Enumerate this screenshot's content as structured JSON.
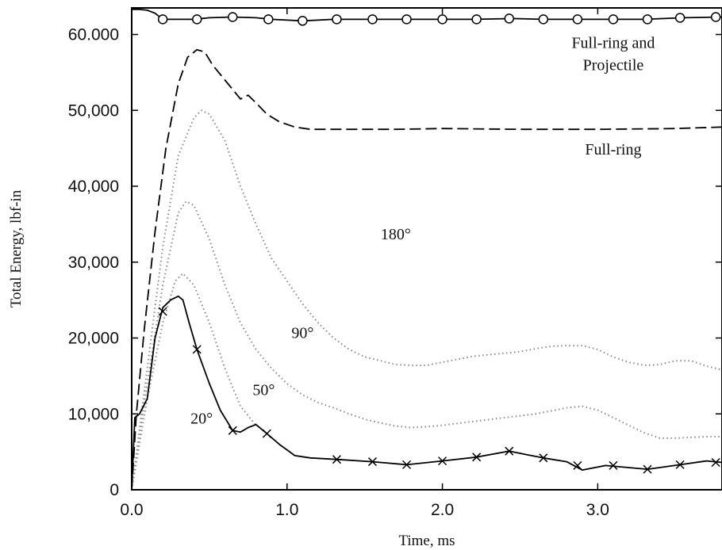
{
  "chart_data": {
    "type": "line",
    "xlabel": "Time, ms",
    "ylabel": "Total Energy, lbf-in",
    "xlim": [
      0,
      3.8
    ],
    "ylim": [
      0,
      63500
    ],
    "x_ticks": [
      {
        "value": 0.0,
        "label": "0.0"
      },
      {
        "value": 1.0,
        "label": "1.0"
      },
      {
        "value": 2.0,
        "label": "2.0"
      },
      {
        "value": 3.0,
        "label": "3.0"
      }
    ],
    "y_ticks": [
      {
        "value": 0,
        "label": "0"
      },
      {
        "value": 10000,
        "label": "10,000"
      },
      {
        "value": 20000,
        "label": "20,000"
      },
      {
        "value": 30000,
        "label": "30,000"
      },
      {
        "value": 40000,
        "label": "40,000"
      },
      {
        "value": 50000,
        "label": "50,000"
      },
      {
        "value": 60000,
        "label": "60.000"
      }
    ],
    "grid": false,
    "series": [
      {
        "name": "Full-ring and Projectile",
        "style": "solid",
        "marker": "circle",
        "color": "#000000",
        "x": [
          0.0,
          0.05,
          0.1,
          0.15,
          0.2,
          0.3,
          0.4,
          0.5,
          0.65,
          0.8,
          0.9,
          1.1,
          1.3,
          1.5,
          1.75,
          2.0,
          2.2,
          2.45,
          2.65,
          2.9,
          3.1,
          3.3,
          3.55,
          3.8
        ],
        "y": [
          63300,
          63300,
          63200,
          62800,
          62000,
          62000,
          62000,
          62200,
          62300,
          62200,
          62000,
          61800,
          62000,
          62000,
          62000,
          62000,
          62000,
          62100,
          62000,
          62000,
          62000,
          62000,
          62200,
          62300
        ],
        "marker_x": [
          0.2,
          0.42,
          0.65,
          0.88,
          1.1,
          1.32,
          1.55,
          1.77,
          2.0,
          2.22,
          2.43,
          2.65,
          2.87,
          3.1,
          3.32,
          3.53,
          3.76
        ],
        "marker_y": [
          62000,
          62000,
          62300,
          62000,
          61800,
          62000,
          62000,
          62000,
          62000,
          62000,
          62100,
          62000,
          62000,
          62000,
          62000,
          62200,
          62300
        ]
      },
      {
        "name": "Full-ring",
        "style": "dashed",
        "color": "#000000",
        "x": [
          0.0,
          0.03,
          0.08,
          0.15,
          0.22,
          0.3,
          0.36,
          0.42,
          0.47,
          0.52,
          0.6,
          0.7,
          0.75,
          0.8,
          0.87,
          0.95,
          1.05,
          1.15,
          1.4,
          1.7,
          2.0,
          2.5,
          3.0,
          3.5,
          3.8
        ],
        "y": [
          0,
          10000,
          21000,
          34000,
          45000,
          53500,
          57000,
          58000,
          57700,
          56000,
          54000,
          51500,
          52000,
          51000,
          49500,
          48500,
          47800,
          47500,
          47500,
          47500,
          47600,
          47500,
          47500,
          47600,
          47800
        ]
      },
      {
        "name": "180°",
        "style": "dotted",
        "color": "#8a8a8a",
        "x": [
          0.0,
          0.1,
          0.2,
          0.3,
          0.4,
          0.45,
          0.5,
          0.6,
          0.7,
          0.8,
          0.9,
          1.0,
          1.1,
          1.2,
          1.3,
          1.4,
          1.5,
          1.6,
          1.7,
          1.8,
          1.9,
          2.0,
          2.1,
          2.2,
          2.3,
          2.4,
          2.5,
          2.6,
          2.7,
          2.8,
          2.9,
          3.0,
          3.1,
          3.2,
          3.3,
          3.4,
          3.5,
          3.6,
          3.7,
          3.8
        ],
        "y": [
          0,
          16000,
          32000,
          44000,
          49000,
          50000,
          49500,
          46000,
          40000,
          35000,
          30500,
          27500,
          24500,
          22000,
          20000,
          18500,
          17500,
          17000,
          16500,
          16400,
          16400,
          16800,
          17200,
          17600,
          17800,
          18000,
          18200,
          18600,
          18900,
          19000,
          19000,
          18500,
          17500,
          16800,
          16400,
          16500,
          17000,
          17000,
          16300,
          15800
        ]
      },
      {
        "name": "90°",
        "style": "dotted",
        "color": "#8a8a8a",
        "x": [
          0.0,
          0.1,
          0.2,
          0.3,
          0.35,
          0.4,
          0.5,
          0.6,
          0.7,
          0.8,
          0.9,
          1.0,
          1.1,
          1.2,
          1.3,
          1.4,
          1.5,
          1.6,
          1.7,
          1.8,
          1.9,
          2.0,
          2.2,
          2.4,
          2.6,
          2.8,
          2.9,
          3.0,
          3.1,
          3.2,
          3.3,
          3.4,
          3.5,
          3.6,
          3.7,
          3.8
        ],
        "y": [
          0,
          14000,
          27000,
          36500,
          38000,
          37500,
          33000,
          27000,
          22000,
          18500,
          16000,
          14000,
          12500,
          11500,
          10800,
          10000,
          9300,
          8800,
          8400,
          8200,
          8300,
          8500,
          9000,
          9500,
          10000,
          10800,
          11000,
          10500,
          9500,
          8500,
          7500,
          6800,
          6800,
          6900,
          7000,
          7000
        ]
      },
      {
        "name": "50°",
        "style": "dotted",
        "color": "#8a8a8a",
        "x": [
          0.0,
          0.1,
          0.2,
          0.28,
          0.33,
          0.4,
          0.5,
          0.6,
          0.7,
          0.8
        ],
        "y": [
          0,
          12000,
          22000,
          27500,
          28500,
          27000,
          22000,
          16000,
          11000,
          8500
        ]
      },
      {
        "name": "20°",
        "style": "solid",
        "marker": "x",
        "color": "#000000",
        "x": [
          0.0,
          0.02,
          0.05,
          0.1,
          0.15,
          0.2,
          0.25,
          0.3,
          0.33,
          0.37,
          0.42,
          0.5,
          0.57,
          0.65,
          0.7,
          0.75,
          0.8,
          0.87,
          0.95,
          1.05,
          1.15,
          1.32,
          1.55,
          1.77,
          2.0,
          2.22,
          2.43,
          2.55,
          2.65,
          2.8,
          2.9,
          3.05,
          3.32,
          3.53,
          3.7,
          3.8
        ],
        "y": [
          0,
          9500,
          10000,
          12000,
          20000,
          24000,
          25000,
          25500,
          25000,
          22000,
          18500,
          14000,
          10500,
          7800,
          7600,
          8200,
          8600,
          7400,
          6000,
          4500,
          4200,
          4000,
          3700,
          3300,
          3800,
          4300,
          5100,
          4600,
          4200,
          3700,
          2600,
          3200,
          2700,
          3300,
          3800,
          3600
        ],
        "marker_x": [
          0.2,
          0.42,
          0.65,
          0.87,
          1.32,
          1.55,
          1.77,
          2.0,
          2.22,
          2.43,
          2.65,
          2.87,
          3.1,
          3.32,
          3.53,
          3.76
        ],
        "marker_y": [
          23500,
          18500,
          7800,
          7400,
          4000,
          3700,
          3300,
          3800,
          4300,
          5100,
          4200,
          3200,
          3200,
          2700,
          3300,
          3600
        ]
      }
    ],
    "annotations": [
      {
        "text": "Full-ring and",
        "x": 3.1,
        "y": 58200
      },
      {
        "text": "Projectile",
        "x": 3.1,
        "y": 55300
      },
      {
        "text": "Full-ring",
        "x": 3.1,
        "y": 44200
      },
      {
        "text": "180°",
        "x": 1.7,
        "y": 33000
      },
      {
        "text": "90°",
        "x": 1.1,
        "y": 20000
      },
      {
        "text": "50°",
        "x": 0.85,
        "y": 12500
      },
      {
        "text": "20°",
        "x": 0.45,
        "y": 8700
      }
    ]
  }
}
